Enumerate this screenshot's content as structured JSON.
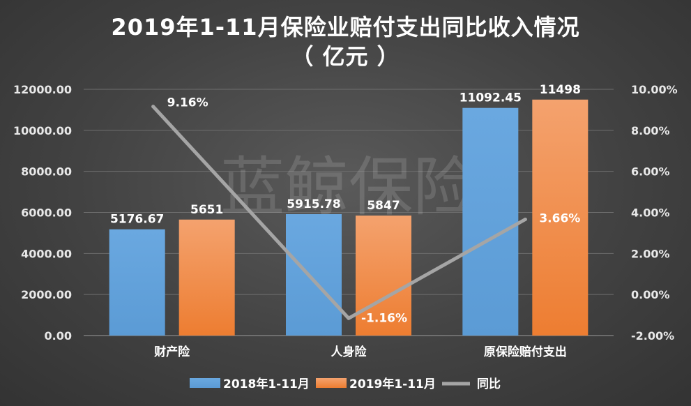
{
  "chart_data": {
    "type": "bar",
    "title": "2019年1-11月保险业赔付支出同比收入情况",
    "subtitle": "（ 亿元 ）",
    "watermark": "蓝鲸保险",
    "categories": [
      "财产险",
      "人身险",
      "原保险赔付支出"
    ],
    "series": [
      {
        "name": "2018年1-11月",
        "type": "bar",
        "axis": "left",
        "values": [
          5176.67,
          5915.78,
          11092.45
        ],
        "labels": [
          "5176.67",
          "5915.78",
          "11092.45"
        ],
        "color": "#5b9bd5"
      },
      {
        "name": "2019年1-11月",
        "type": "bar",
        "axis": "left",
        "values": [
          5651,
          5847,
          11498
        ],
        "labels": [
          "5651",
          "5847",
          "11498"
        ],
        "color": "#ed7d31"
      },
      {
        "name": "同比",
        "type": "line",
        "axis": "right",
        "values": [
          9.16,
          -1.16,
          3.66
        ],
        "labels": [
          "9.16%",
          "-1.16%",
          "3.66%"
        ],
        "color": "#a5a5a5"
      }
    ],
    "ylim": [
      0,
      12000
    ],
    "yticks": [
      "0.00",
      "2000.00",
      "4000.00",
      "6000.00",
      "8000.00",
      "10000.00",
      "12000.00"
    ],
    "y2lim": [
      -2,
      10
    ],
    "y2ticks": [
      "-2.00%",
      "0.00%",
      "2.00%",
      "4.00%",
      "6.00%",
      "8.00%",
      "10.00%"
    ],
    "grid": true,
    "legend": "bottom"
  }
}
